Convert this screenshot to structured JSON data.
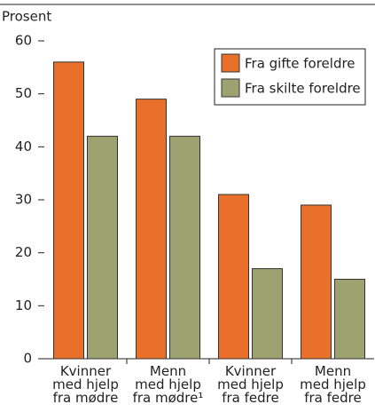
{
  "chart_data": {
    "type": "bar",
    "y_label": "Prosent",
    "categories": [
      "Kvinner\nmed hjelp\nfra mødre",
      "Menn\nmed hjelp\nfra mødre¹",
      "Kvinner\nmed hjelp\nfra fedre",
      "Menn\nmed hjelp\nfra fedre"
    ],
    "series": [
      {
        "name": "Fra gifte foreldre",
        "color": "#e8702a",
        "values": [
          56,
          49,
          31,
          29
        ]
      },
      {
        "name": "Fra skilte foreldre",
        "color": "#9ca370",
        "values": [
          42,
          42,
          17,
          15
        ]
      }
    ],
    "ylim": [
      0,
      60
    ],
    "yticks": [
      0,
      10,
      20,
      30,
      40,
      50,
      60
    ],
    "legend": "top-right"
  }
}
